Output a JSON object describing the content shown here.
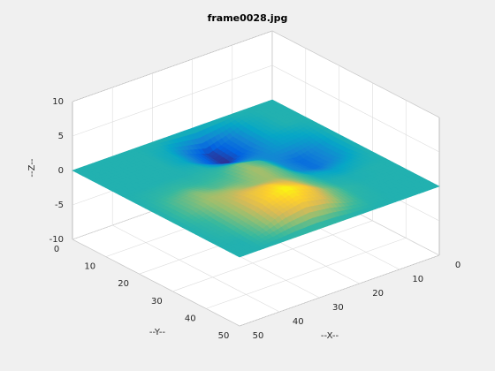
{
  "chart_data": {
    "type": "surface",
    "title": "frame0028.jpg",
    "xlabel": "--X--",
    "ylabel": "--Y--",
    "zlabel": "--Z--",
    "x": [
      0,
      5,
      10,
      15,
      20,
      25,
      30,
      35,
      40,
      45,
      50
    ],
    "y": [
      0,
      5,
      10,
      15,
      20,
      25,
      30,
      35,
      40,
      45,
      50
    ],
    "z": [
      [
        0,
        0,
        0,
        0,
        0,
        0,
        0,
        0,
        0,
        0,
        0
      ],
      [
        0,
        0,
        0,
        -0.5,
        -1.1,
        -1.0,
        -0.3,
        0,
        0,
        0,
        0
      ],
      [
        0,
        -0.3,
        -0.4,
        -0.7,
        -1.8,
        -1.7,
        -0.6,
        -0.1,
        0,
        0,
        0
      ],
      [
        0,
        -1.5,
        -1.7,
        -1.2,
        -1.1,
        -1.0,
        -0.3,
        0,
        0.2,
        0.1,
        0
      ],
      [
        0,
        -2.5,
        -2.8,
        -1.1,
        0.3,
        0.6,
        0.6,
        0.8,
        1.1,
        0.8,
        0
      ],
      [
        0,
        -1.5,
        -1.7,
        -0.7,
        0.9,
        1.4,
        1.3,
        2.0,
        2.6,
        2.0,
        0
      ],
      [
        0,
        -0.3,
        -0.4,
        0,
        0.3,
        0.7,
        1.2,
        2.6,
        3.5,
        2.6,
        0
      ],
      [
        0,
        0,
        0,
        0,
        0.2,
        0.6,
        1.5,
        2.3,
        2.6,
        2.0,
        0
      ],
      [
        0,
        0,
        0,
        0,
        0.3,
        1.0,
        1.4,
        1.3,
        1.1,
        0.8,
        0
      ],
      [
        0,
        0,
        0,
        0,
        0.2,
        0.6,
        0.7,
        0.3,
        0.2,
        0,
        0
      ],
      [
        0,
        0,
        0,
        0,
        0,
        0,
        0,
        0,
        0,
        0,
        0
      ]
    ],
    "xlim": [
      0,
      50
    ],
    "ylim": [
      0,
      50
    ],
    "zlim": [
      -10,
      10
    ],
    "xticks": [
      0,
      10,
      20,
      30,
      40,
      50
    ],
    "yticks": [
      0,
      10,
      20,
      30,
      40,
      50
    ],
    "zticks": [
      -10,
      -5,
      0,
      5,
      10
    ],
    "grid": true,
    "colormap": [
      "#352a87",
      "#0363e1",
      "#1485d4",
      "#06a7c6",
      "#38b99e",
      "#92bf73",
      "#d9ba56",
      "#fcce2e",
      "#f9fb0e"
    ]
  }
}
